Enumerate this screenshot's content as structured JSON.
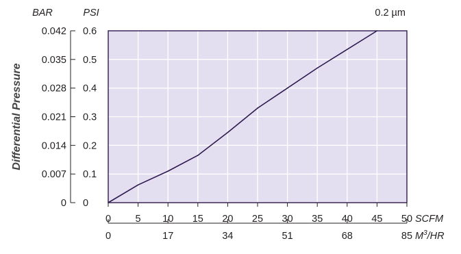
{
  "chart_data": {
    "type": "line",
    "ylabel": "Differential Pressure",
    "annotation": "0.2 µm",
    "plot_background": "#e3def0",
    "line_color": "#2e1a4f",
    "grid": true,
    "x_primary": {
      "unit": "SCFM",
      "range": [
        0,
        50
      ],
      "ticks": [
        "0",
        "5",
        "10",
        "15",
        "20",
        "25",
        "30",
        "35",
        "40",
        "45",
        "50"
      ]
    },
    "x_secondary": {
      "unit": "M³/HR",
      "unit_base": "M",
      "unit_sup": "3",
      "unit_tail": "/HR",
      "range": [
        0,
        85
      ],
      "ticks": [
        "0",
        "17",
        "34",
        "51",
        "68",
        "85"
      ]
    },
    "y_primary": {
      "unit": "PSI",
      "range": [
        0,
        0.6
      ],
      "ticks": [
        "0",
        "0.1",
        "0.2",
        "0.3",
        "0.4",
        "0.5",
        "0.6"
      ]
    },
    "y_secondary": {
      "unit": "BAR",
      "range": [
        0,
        0.042
      ],
      "ticks": [
        "0",
        "0.007",
        "0.014",
        "0.021",
        "0.028",
        "0.035",
        "0.042"
      ]
    },
    "series": [
      {
        "x": [
          0,
          5,
          10,
          15,
          20,
          25,
          30,
          35,
          40,
          45
        ],
        "y": [
          0,
          0.062,
          0.11,
          0.165,
          0.245,
          0.33,
          0.4,
          0.47,
          0.535,
          0.6
        ]
      }
    ]
  }
}
